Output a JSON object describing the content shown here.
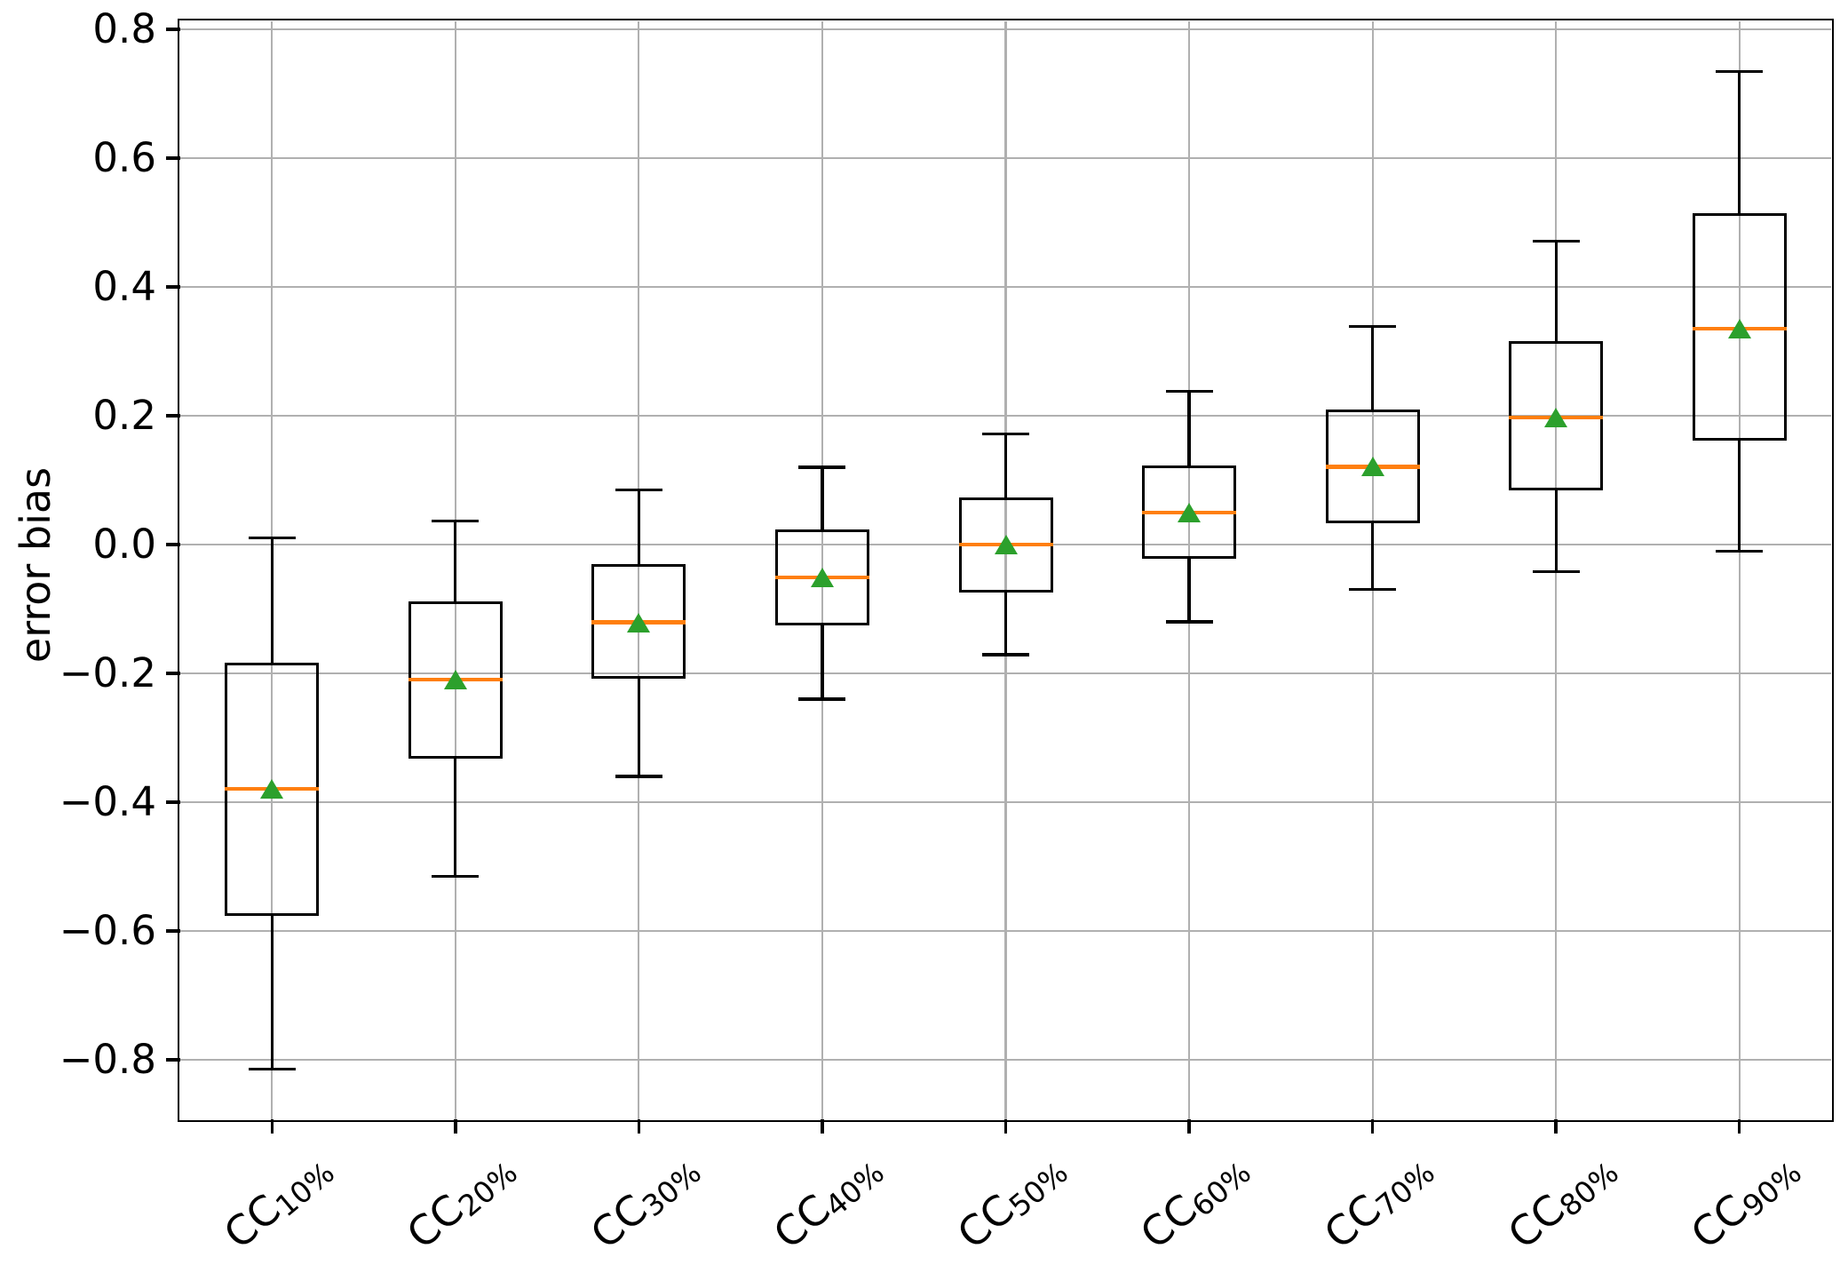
{
  "chart_data": {
    "type": "box",
    "title": "",
    "ylabel": "error bias",
    "xlabel": "",
    "grid": true,
    "legend": null,
    "ylim": [
      -0.8925,
      0.8125
    ],
    "yticks": {
      "values": [
        0.8,
        0.6,
        0.4,
        0.2,
        0.0,
        -0.2,
        -0.4,
        -0.6,
        -0.8
      ],
      "labels": [
        "0.8",
        "0.6",
        "0.4",
        "0.2",
        "0.0",
        "−0.2",
        "−0.4",
        "−0.6",
        "−0.8"
      ]
    },
    "categories": [
      {
        "main": "CC",
        "sub": "10%"
      },
      {
        "main": "CC",
        "sub": "20%"
      },
      {
        "main": "CC",
        "sub": "30%"
      },
      {
        "main": "CC",
        "sub": "40%"
      },
      {
        "main": "CC",
        "sub": "50%"
      },
      {
        "main": "CC",
        "sub": "60%"
      },
      {
        "main": "CC",
        "sub": "70%"
      },
      {
        "main": "CC",
        "sub": "80%"
      },
      {
        "main": "CC",
        "sub": "90%"
      }
    ],
    "boxes": [
      {
        "label": "CC10%",
        "whislo": -0.815,
        "q1": -0.576,
        "med": -0.379,
        "mean": -0.379,
        "q3": -0.183,
        "whishi": 0.01
      },
      {
        "label": "CC20%",
        "whislo": -0.515,
        "q1": -0.332,
        "med": -0.21,
        "mean": -0.21,
        "q3": -0.088,
        "whishi": 0.036
      },
      {
        "label": "CC30%",
        "whislo": -0.36,
        "q1": -0.208,
        "med": -0.121,
        "mean": -0.121,
        "q3": -0.031,
        "whishi": 0.085
      },
      {
        "label": "CC40%",
        "whislo": -0.24,
        "q1": -0.126,
        "med": -0.051,
        "mean": -0.051,
        "q3": 0.024,
        "whishi": 0.12
      },
      {
        "label": "CC50%",
        "whislo": -0.171,
        "q1": -0.074,
        "med": 0.0,
        "mean": 0.0,
        "q3": 0.073,
        "whishi": 0.172
      },
      {
        "label": "CC60%",
        "whislo": -0.12,
        "q1": -0.022,
        "med": 0.05,
        "mean": 0.05,
        "q3": 0.123,
        "whishi": 0.238
      },
      {
        "label": "CC70%",
        "whislo": -0.07,
        "q1": 0.033,
        "med": 0.121,
        "mean": 0.121,
        "q3": 0.209,
        "whishi": 0.339
      },
      {
        "label": "CC80%",
        "whislo": -0.042,
        "q1": 0.084,
        "med": 0.197,
        "mean": 0.197,
        "q3": 0.316,
        "whishi": 0.471
      },
      {
        "label": "CC90%",
        "whislo": -0.01,
        "q1": 0.161,
        "med": 0.335,
        "mean": 0.335,
        "q3": 0.514,
        "whishi": 0.735
      }
    ],
    "colors": {
      "median": "#ff7f0e",
      "mean": "#2ca02c",
      "box_line": "#000000",
      "grid": "#b0b0b0",
      "background": "#ffffff"
    }
  }
}
